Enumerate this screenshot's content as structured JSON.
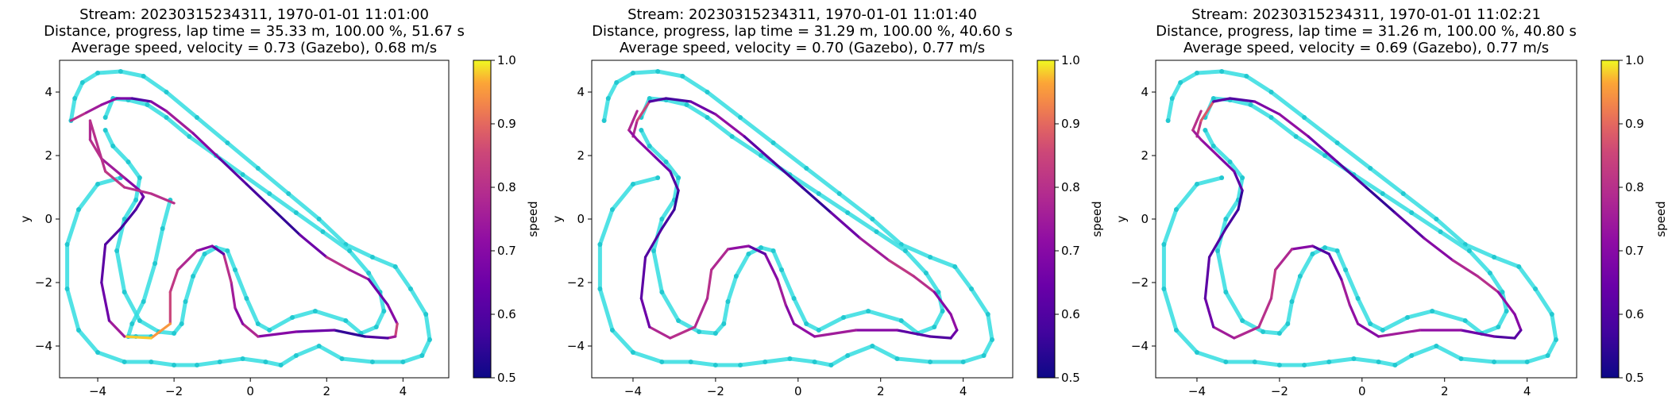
{
  "chart_data": [
    {
      "type": "scatter",
      "title_lines": [
        "Stream: 20230315234311, 1970-01-01 11:01:00",
        "Distance, progress, lap time = 35.33 m, 100.00 %, 51.67 s",
        "Average speed, velocity = 0.73 (Gazebo), 0.68 m/s"
      ],
      "xlabel": "",
      "ylabel": "y",
      "xlim": [
        -5.0,
        5.2
      ],
      "ylim": [
        -5.0,
        5.0
      ],
      "xticks": [
        "−4",
        "−2",
        "0",
        "2",
        "4"
      ],
      "yticks": [
        "4",
        "2",
        "0",
        "−2",
        "−4"
      ],
      "colorbar": {
        "label": "speed",
        "range": [
          0.5,
          1.0
        ],
        "ticks": [
          "0.5",
          "0.6",
          "0.7",
          "0.8",
          "0.9",
          "1.0"
        ]
      },
      "trajectory": {
        "x": [
          -4.7,
          -4.3,
          -3.9,
          -3.5,
          -3.1,
          -2.6,
          -2.2,
          -1.5,
          -0.8,
          -0.1,
          0.6,
          1.3,
          2.0,
          2.6,
          3.1,
          3.6,
          3.85,
          3.8,
          3.6,
          3.0,
          2.2,
          1.2,
          0.2,
          -0.2,
          -0.4,
          -0.5,
          -0.7,
          -1.0,
          -1.4,
          -1.9,
          -2.1,
          -2.1,
          -2.6,
          -3.3,
          -3.7,
          -3.9,
          -3.8,
          -3.4,
          -3.0,
          -2.8,
          -2.9,
          -3.3,
          -3.9,
          -4.2,
          -4.2,
          -3.8,
          -3.3,
          -2.6,
          -2.0
        ],
        "y": [
          3.1,
          3.35,
          3.6,
          3.8,
          3.8,
          3.7,
          3.4,
          2.7,
          1.9,
          1.1,
          0.3,
          -0.5,
          -1.2,
          -1.6,
          -1.9,
          -2.7,
          -3.3,
          -3.7,
          -3.75,
          -3.7,
          -3.5,
          -3.55,
          -3.7,
          -3.3,
          -2.8,
          -2.0,
          -1.1,
          -0.85,
          -1.0,
          -1.6,
          -2.3,
          -3.3,
          -3.75,
          -3.7,
          -3.2,
          -2.0,
          -0.8,
          -0.3,
          0.3,
          0.7,
          0.9,
          1.3,
          1.9,
          2.5,
          3.1,
          1.5,
          1.0,
          0.8,
          0.5
        ],
        "speed": [
          0.8,
          0.75,
          0.72,
          0.68,
          0.6,
          0.7,
          0.75,
          0.7,
          0.62,
          0.58,
          0.55,
          0.65,
          0.8,
          0.75,
          0.65,
          0.7,
          0.85,
          0.75,
          0.6,
          0.55,
          0.65,
          0.7,
          0.78,
          0.7,
          0.75,
          0.8,
          0.62,
          0.7,
          0.78,
          0.82,
          0.85,
          0.95,
          0.98,
          0.75,
          0.65,
          0.62,
          0.6,
          0.58,
          0.62,
          0.65,
          0.7,
          0.75,
          0.8,
          0.78,
          0.8,
          0.82,
          0.8,
          0.8,
          0.78
        ]
      }
    },
    {
      "type": "scatter",
      "title_lines": [
        "Stream: 20230315234311, 1970-01-01 11:01:40",
        "Distance, progress, lap time = 31.29 m, 100.00 %, 40.60 s",
        "Average speed, velocity = 0.70 (Gazebo), 0.77 m/s"
      ],
      "xlabel": "",
      "ylabel": "y",
      "xlim": [
        -5.0,
        5.2
      ],
      "ylim": [
        -5.0,
        5.0
      ],
      "xticks": [
        "−4",
        "−2",
        "0",
        "2",
        "4"
      ],
      "yticks": [
        "4",
        "2",
        "0",
        "−2",
        "−4"
      ],
      "colorbar": {
        "label": "speed",
        "range": [
          0.5,
          1.0
        ],
        "ticks": [
          "0.5",
          "0.6",
          "0.7",
          "0.8",
          "0.9",
          "1.0"
        ]
      },
      "trajectory": {
        "x": [
          -4.0,
          -3.9,
          -3.6,
          -3.2,
          -2.6,
          -2.0,
          -1.3,
          -0.6,
          0.1,
          0.8,
          1.5,
          2.2,
          2.8,
          3.3,
          3.7,
          3.85,
          3.7,
          3.2,
          2.4,
          1.4,
          0.4,
          -0.1,
          -0.3,
          -0.5,
          -0.8,
          -1.2,
          -1.7,
          -2.1,
          -2.2,
          -2.5,
          -3.1,
          -3.6,
          -3.8,
          -3.7,
          -3.3,
          -3.0,
          -2.9,
          -3.1,
          -3.5,
          -3.9,
          -4.1,
          -3.9
        ],
        "y": [
          2.6,
          3.1,
          3.7,
          3.8,
          3.7,
          3.3,
          2.6,
          1.8,
          1.0,
          0.2,
          -0.6,
          -1.3,
          -1.8,
          -2.3,
          -3.0,
          -3.5,
          -3.75,
          -3.7,
          -3.5,
          -3.5,
          -3.7,
          -3.3,
          -2.7,
          -1.9,
          -1.1,
          -0.85,
          -0.95,
          -1.6,
          -2.5,
          -3.4,
          -3.75,
          -3.4,
          -2.5,
          -1.2,
          -0.3,
          0.3,
          0.9,
          1.5,
          2.0,
          2.5,
          2.8,
          3.4
        ],
        "speed": [
          0.78,
          0.85,
          0.6,
          0.58,
          0.65,
          0.72,
          0.62,
          0.58,
          0.55,
          0.65,
          0.75,
          0.82,
          0.8,
          0.7,
          0.72,
          0.65,
          0.6,
          0.62,
          0.7,
          0.75,
          0.72,
          0.7,
          0.75,
          0.7,
          0.62,
          0.72,
          0.78,
          0.8,
          0.78,
          0.8,
          0.78,
          0.65,
          0.62,
          0.6,
          0.58,
          0.55,
          0.6,
          0.65,
          0.7,
          0.72,
          0.78,
          0.9
        ]
      }
    },
    {
      "type": "scatter",
      "title_lines": [
        "Stream: 20230315234311, 1970-01-01 11:02:21",
        "Distance, progress, lap time = 31.26 m, 100.00 %, 40.80 s",
        "Average speed, velocity = 0.69 (Gazebo), 0.77 m/s"
      ],
      "xlabel": "",
      "ylabel": "y",
      "xlim": [
        -5.0,
        5.2
      ],
      "ylim": [
        -5.0,
        5.0
      ],
      "xticks": [
        "−4",
        "−2",
        "0",
        "2",
        "4"
      ],
      "yticks": [
        "4",
        "2",
        "0",
        "−2",
        "−4"
      ],
      "colorbar": {
        "label": "speed",
        "range": [
          0.5,
          1.0
        ],
        "ticks": [
          "0.5",
          "0.6",
          "0.7",
          "0.8",
          "0.9",
          "1.0"
        ]
      },
      "trajectory": {
        "x": [
          -4.0,
          -3.9,
          -3.6,
          -3.2,
          -2.6,
          -2.0,
          -1.3,
          -0.6,
          0.1,
          0.8,
          1.5,
          2.2,
          2.8,
          3.3,
          3.7,
          3.85,
          3.7,
          3.2,
          2.4,
          1.4,
          0.4,
          -0.1,
          -0.3,
          -0.5,
          -0.8,
          -1.2,
          -1.7,
          -2.1,
          -2.2,
          -2.5,
          -3.1,
          -3.6,
          -3.8,
          -3.7,
          -3.3,
          -3.0,
          -2.9,
          -3.1,
          -3.5,
          -3.9,
          -4.1,
          -3.9
        ],
        "y": [
          2.6,
          3.1,
          3.7,
          3.8,
          3.7,
          3.3,
          2.6,
          1.8,
          1.0,
          0.2,
          -0.6,
          -1.3,
          -1.8,
          -2.3,
          -3.0,
          -3.5,
          -3.75,
          -3.7,
          -3.5,
          -3.5,
          -3.7,
          -3.3,
          -2.7,
          -1.9,
          -1.1,
          -0.85,
          -0.95,
          -1.6,
          -2.5,
          -3.4,
          -3.75,
          -3.4,
          -2.5,
          -1.2,
          -0.3,
          0.3,
          0.9,
          1.5,
          2.0,
          2.5,
          2.8,
          3.4
        ],
        "speed": [
          0.82,
          0.88,
          0.62,
          0.6,
          0.68,
          0.72,
          0.65,
          0.6,
          0.55,
          0.62,
          0.7,
          0.78,
          0.8,
          0.72,
          0.7,
          0.62,
          0.6,
          0.65,
          0.72,
          0.75,
          0.7,
          0.72,
          0.75,
          0.65,
          0.6,
          0.7,
          0.78,
          0.82,
          0.8,
          0.78,
          0.75,
          0.65,
          0.62,
          0.6,
          0.58,
          0.55,
          0.62,
          0.68,
          0.72,
          0.75,
          0.8,
          0.88
        ]
      }
    }
  ],
  "track": {
    "outer": {
      "x": [
        -4.7,
        -4.6,
        -4.4,
        -4.0,
        -3.4,
        -2.8,
        -2.2,
        -1.4,
        -0.6,
        0.2,
        1.0,
        1.8,
        2.5,
        3.2,
        3.8,
        4.2,
        4.6,
        4.7,
        4.5,
        4.0,
        3.2,
        2.4,
        1.8,
        1.2,
        0.8,
        0.4,
        -0.2,
        -0.8,
        -1.4,
        -2.0,
        -2.6,
        -3.3,
        -4.0,
        -4.5,
        -4.8,
        -4.8,
        -4.5,
        -4.0,
        -3.4
      ],
      "y": [
        3.1,
        3.8,
        4.3,
        4.6,
        4.65,
        4.5,
        4.0,
        3.2,
        2.4,
        1.6,
        0.8,
        0.0,
        -0.8,
        -1.2,
        -1.5,
        -2.2,
        -3.0,
        -3.8,
        -4.3,
        -4.5,
        -4.5,
        -4.4,
        -4.0,
        -4.3,
        -4.6,
        -4.5,
        -4.4,
        -4.5,
        -4.6,
        -4.6,
        -4.5,
        -4.5,
        -4.2,
        -3.5,
        -2.2,
        -0.8,
        0.3,
        1.1,
        1.3
      ]
    },
    "inner": {
      "x": [
        -3.8,
        -3.6,
        -3.2,
        -2.7,
        -2.2,
        -1.6,
        -0.9,
        -0.2,
        0.5,
        1.2,
        1.9,
        2.6,
        3.1,
        3.4,
        3.5,
        3.3,
        2.9,
        2.5,
        1.7,
        1.1,
        0.5,
        0.2,
        -0.1,
        -0.4,
        -0.6,
        -0.9,
        -1.2,
        -1.5,
        -1.7,
        -1.8,
        -2.0,
        -2.4,
        -2.9,
        -3.3,
        -3.5,
        -3.3,
        -3.0,
        -2.9,
        -3.2,
        -3.6,
        -3.8
      ],
      "y": [
        3.2,
        3.8,
        3.75,
        3.6,
        3.2,
        2.6,
        2.0,
        1.4,
        0.8,
        0.2,
        -0.4,
        -1.0,
        -1.7,
        -2.3,
        -2.9,
        -3.4,
        -3.6,
        -3.2,
        -2.9,
        -3.1,
        -3.5,
        -3.3,
        -2.5,
        -1.6,
        -1.0,
        -0.9,
        -1.1,
        -1.8,
        -2.6,
        -3.3,
        -3.6,
        -3.55,
        -3.2,
        -2.3,
        -1.0,
        0.0,
        0.6,
        1.3,
        1.8,
        2.3,
        2.8
      ]
    },
    "inner_loop_b": {
      "x": [
        -2.1,
        -2.3,
        -2.5,
        -2.8,
        -3.1,
        -3.2,
        -3.0,
        -2.6
      ],
      "y": [
        0.6,
        -0.3,
        -1.4,
        -2.6,
        -3.3,
        -3.7,
        -3.7,
        -3.7
      ]
    }
  }
}
